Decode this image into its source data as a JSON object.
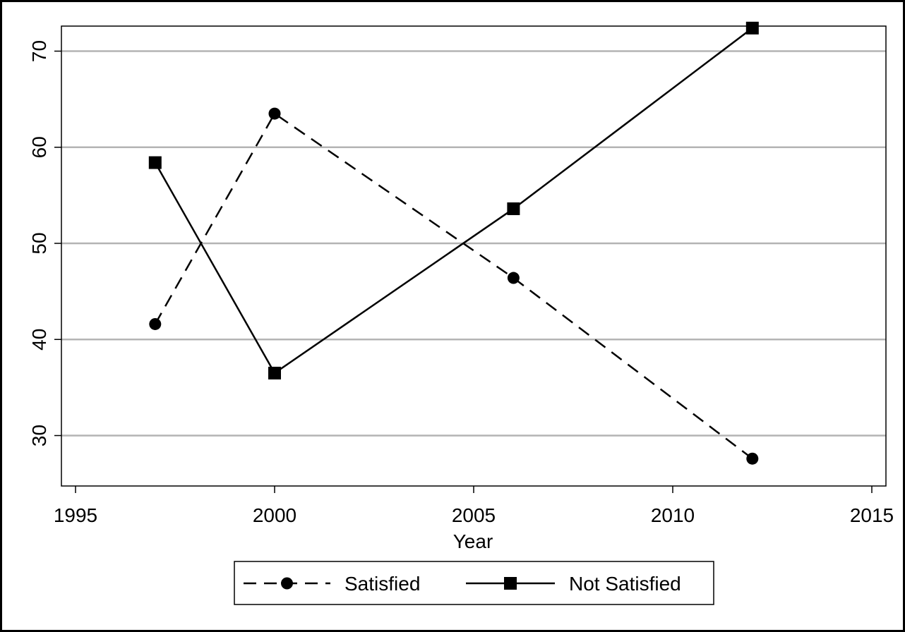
{
  "chart_data": {
    "type": "line",
    "xlabel": "Year",
    "ylabel": "",
    "xlim": [
      1995,
      2015
    ],
    "ylim": [
      26,
      74
    ],
    "xticks": [
      1995,
      2000,
      2005,
      2010,
      2015
    ],
    "yticks": [
      30,
      40,
      50,
      60,
      70
    ],
    "grid": "horizontal",
    "legend": "bottom",
    "colors": {
      "line": "#000000",
      "grid": "#b4b4b4",
      "frame": "#000000"
    },
    "series": [
      {
        "name": "Satisfied",
        "marker": "circle",
        "line": "dashed",
        "x": [
          1997,
          2000,
          2006,
          2012
        ],
        "y": [
          41.6,
          63.5,
          46.4,
          27.6
        ]
      },
      {
        "name": "Not Satisfied",
        "marker": "square",
        "line": "solid",
        "x": [
          1997,
          2000,
          2006,
          2012
        ],
        "y": [
          58.4,
          36.5,
          53.6,
          72.4
        ]
      }
    ]
  }
}
